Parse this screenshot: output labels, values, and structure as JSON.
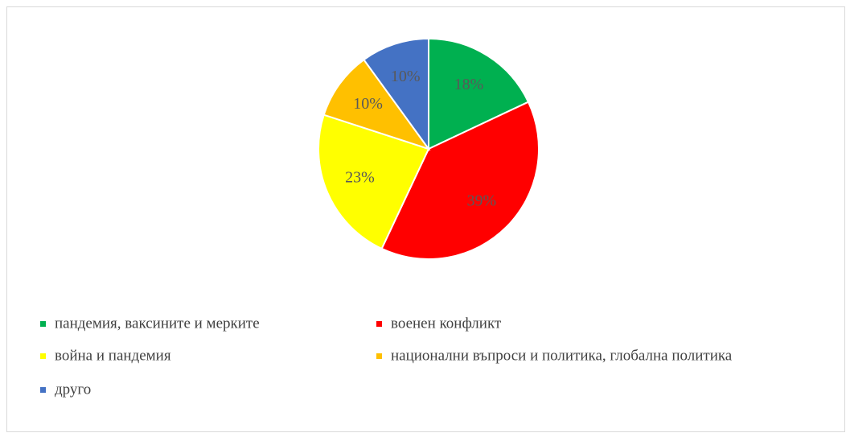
{
  "chart_data": {
    "type": "pie",
    "categories": [
      "пандемия, ваксините и мерките",
      "военен конфликт",
      "война и пандемия",
      "национални въпроси и политика, глобална политика",
      "друго"
    ],
    "values": [
      18,
      39,
      23,
      10,
      10
    ],
    "value_labels": [
      "18%",
      "39%",
      "23%",
      "10%",
      "10%"
    ],
    "colors": [
      "#00b050",
      "#ff0000",
      "#ffff00",
      "#ffc000",
      "#4472c4"
    ],
    "legend": "bottom"
  }
}
